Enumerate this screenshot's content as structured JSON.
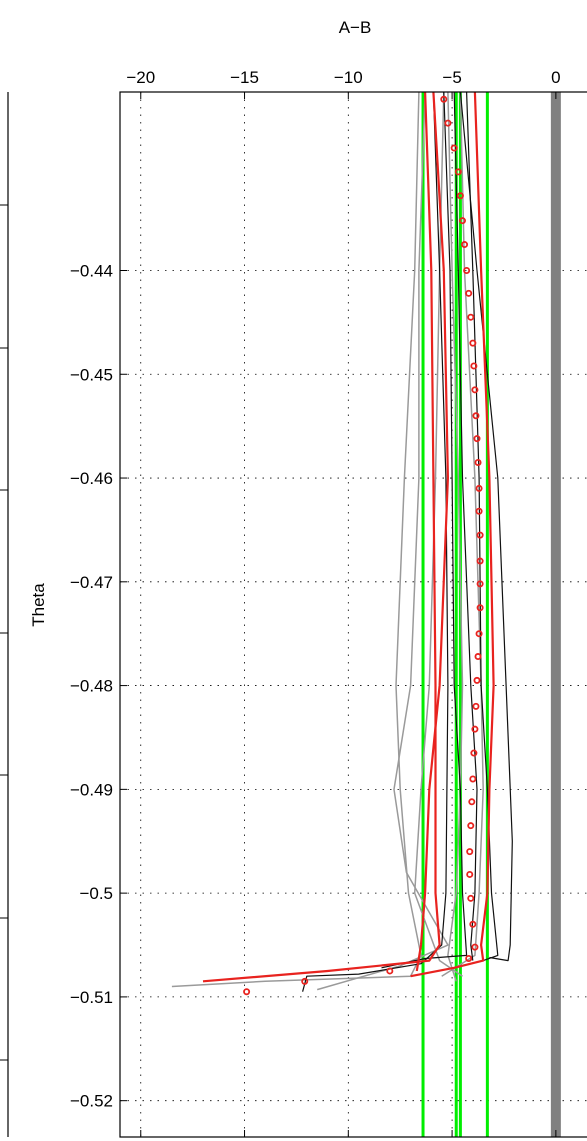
{
  "chart_data": {
    "type": "line",
    "title": "",
    "xlabel": "A−B",
    "ylabel": "Theta",
    "xlim": [
      -21,
      1.5
    ],
    "ylim": [
      -0.5235,
      -0.4228
    ],
    "x_axis_position": "top",
    "grid": true,
    "x_ticks": [
      -20,
      -15,
      -10,
      -5,
      0
    ],
    "x_tick_labels": [
      "−20",
      "−15",
      "−10",
      "−5",
      "0"
    ],
    "y_ticks": [
      -0.44,
      -0.45,
      -0.46,
      -0.47,
      -0.48,
      -0.49,
      -0.5,
      -0.51,
      -0.52
    ],
    "y_tick_labels": [
      "−0.44",
      "−0.45",
      "−0.46",
      "−0.47",
      "−0.48",
      "−0.49",
      "−0.5",
      "−0.51",
      "−0.52"
    ],
    "vertical_lines": [
      {
        "x": 0,
        "color": "#808080",
        "width": 10
      },
      {
        "x": -6.4,
        "color": "#00ee00",
        "width": 3
      },
      {
        "x": -4.8,
        "color": "#00ee00",
        "width": 3
      },
      {
        "x": -4.6,
        "color": "#00ee00",
        "width": 3
      },
      {
        "x": -3.3,
        "color": "#00ee00",
        "width": 3
      }
    ],
    "series": [
      {
        "color": "#9a9a9a",
        "width": 1.5,
        "points": [
          [
            -6.6,
            -0.4228
          ],
          [
            -6.8,
            -0.44
          ],
          [
            -7.3,
            -0.46
          ],
          [
            -7.7,
            -0.48
          ],
          [
            -7.5,
            -0.49
          ],
          [
            -7.1,
            -0.5
          ],
          [
            -6.5,
            -0.506
          ],
          [
            -7,
            -0.508
          ],
          [
            -14,
            -0.5085
          ],
          [
            -18.5,
            -0.509
          ]
        ]
      },
      {
        "color": "#9a9a9a",
        "width": 1.5,
        "points": [
          [
            -6.3,
            -0.4228
          ],
          [
            -6.6,
            -0.44
          ],
          [
            -6.6,
            -0.46
          ],
          [
            -7,
            -0.48
          ],
          [
            -7.8,
            -0.49
          ],
          [
            -7.2,
            -0.498
          ],
          [
            -5.2,
            -0.505
          ],
          [
            -7.5,
            -0.507
          ],
          [
            -11.5,
            -0.5093
          ]
        ]
      },
      {
        "color": "#9a9a9a",
        "width": 1.5,
        "points": [
          [
            -5.4,
            -0.4228
          ],
          [
            -5.6,
            -0.44
          ],
          [
            -5.8,
            -0.46
          ],
          [
            -6.1,
            -0.48
          ],
          [
            -6.5,
            -0.49
          ],
          [
            -6.8,
            -0.5
          ],
          [
            -5.6,
            -0.5065
          ],
          [
            -4.5,
            -0.508
          ]
        ]
      },
      {
        "color": "#9a9a9a",
        "width": 1.5,
        "points": [
          [
            -5.2,
            -0.4228
          ],
          [
            -5,
            -0.44
          ],
          [
            -4.7,
            -0.46
          ],
          [
            -4.5,
            -0.48
          ],
          [
            -4.6,
            -0.49
          ],
          [
            -4.8,
            -0.5
          ],
          [
            -5.2,
            -0.506
          ],
          [
            -4.8,
            -0.5085
          ]
        ]
      },
      {
        "color": "#9a9a9a",
        "width": 1.5,
        "points": [
          [
            -4.6,
            -0.4228
          ],
          [
            -4.4,
            -0.44
          ],
          [
            -3.9,
            -0.46
          ],
          [
            -3.6,
            -0.48
          ],
          [
            -3.5,
            -0.49
          ],
          [
            -3.7,
            -0.5
          ],
          [
            -3.9,
            -0.506
          ],
          [
            -5.5,
            -0.508
          ]
        ]
      },
      {
        "color": "#111111",
        "width": 1.2,
        "points": [
          [
            -5.9,
            -0.4228
          ],
          [
            -5.6,
            -0.44
          ],
          [
            -5.3,
            -0.46
          ],
          [
            -5.2,
            -0.48
          ],
          [
            -5.3,
            -0.5
          ],
          [
            -5.5,
            -0.505
          ],
          [
            -6.5,
            -0.5068
          ],
          [
            -9.5,
            -0.5078
          ],
          [
            -12,
            -0.508
          ],
          [
            -12.2,
            -0.5095
          ]
        ]
      },
      {
        "color": "#111111",
        "width": 1.2,
        "points": [
          [
            -5.4,
            -0.4228
          ],
          [
            -5.1,
            -0.44
          ],
          [
            -5,
            -0.46
          ],
          [
            -4.9,
            -0.48
          ],
          [
            -4.6,
            -0.49
          ],
          [
            -4.5,
            -0.5
          ],
          [
            -4.3,
            -0.506
          ],
          [
            -6.3,
            -0.5063
          ],
          [
            -8.4,
            -0.5072
          ]
        ]
      },
      {
        "color": "#111111",
        "width": 1.2,
        "points": [
          [
            -4.9,
            -0.4228
          ],
          [
            -4.7,
            -0.44
          ],
          [
            -4.5,
            -0.46
          ],
          [
            -4.1,
            -0.48
          ],
          [
            -3.8,
            -0.49
          ],
          [
            -3.9,
            -0.5
          ],
          [
            -4.1,
            -0.505
          ],
          [
            -4,
            -0.5065
          ]
        ]
      },
      {
        "color": "#111111",
        "width": 1.2,
        "points": [
          [
            -4.3,
            -0.4228
          ],
          [
            -4,
            -0.44
          ],
          [
            -3.7,
            -0.46
          ],
          [
            -3.6,
            -0.48
          ],
          [
            -3.3,
            -0.49
          ],
          [
            -3.1,
            -0.5
          ],
          [
            -2.8,
            -0.506
          ],
          [
            -3.5,
            -0.5065
          ]
        ]
      },
      {
        "color": "#111111",
        "width": 1.2,
        "points": [
          [
            -4.6,
            -0.4228
          ],
          [
            -3.8,
            -0.44
          ],
          [
            -2.8,
            -0.46
          ],
          [
            -2.4,
            -0.48
          ],
          [
            -2.1,
            -0.495
          ],
          [
            -2.2,
            -0.505
          ],
          [
            -2.3,
            -0.5065
          ],
          [
            -3.2,
            -0.5062
          ]
        ]
      },
      {
        "color": "#e8231f",
        "width": 2.2,
        "points": [
          [
            -6.3,
            -0.4228
          ],
          [
            -6,
            -0.44
          ],
          [
            -5.9,
            -0.46
          ],
          [
            -5.8,
            -0.48
          ],
          [
            -5.8,
            -0.5
          ],
          [
            -5.6,
            -0.505
          ],
          [
            -6.1,
            -0.5065
          ],
          [
            -11,
            -0.5075
          ],
          [
            -17,
            -0.5085
          ]
        ]
      },
      {
        "color": "#e8231f",
        "width": 2.2,
        "points": [
          [
            -5.9,
            -0.4228
          ],
          [
            -5.4,
            -0.44
          ],
          [
            -5.2,
            -0.46
          ],
          [
            -5.6,
            -0.48
          ],
          [
            -6.1,
            -0.49
          ],
          [
            -6.3,
            -0.5
          ],
          [
            -6.5,
            -0.505
          ],
          [
            -6.7,
            -0.5075
          ]
        ]
      },
      {
        "color": "#e8231f",
        "width": 2.2,
        "points": [
          [
            -3.9,
            -0.4228
          ],
          [
            -3.6,
            -0.44
          ],
          [
            -3.2,
            -0.46
          ],
          [
            -3,
            -0.48
          ],
          [
            -3.2,
            -0.49
          ],
          [
            -3.3,
            -0.5
          ],
          [
            -3.6,
            -0.505
          ],
          [
            -3.5,
            -0.5065
          ],
          [
            -4.9,
            -0.5072
          ],
          [
            -7,
            -0.508
          ]
        ]
      }
    ],
    "markers": {
      "color": "#e8231f",
      "shape": "open-circle",
      "points": [
        [
          -5.4,
          -0.4235
        ],
        [
          -5.2,
          -0.4258
        ],
        [
          -4.9,
          -0.4282
        ],
        [
          -4.7,
          -0.4305
        ],
        [
          -4.6,
          -0.4328
        ],
        [
          -4.5,
          -0.4352
        ],
        [
          -4.4,
          -0.4375
        ],
        [
          -4.3,
          -0.44
        ],
        [
          -4.2,
          -0.4422
        ],
        [
          -4.1,
          -0.4445
        ],
        [
          -4,
          -0.447
        ],
        [
          -3.95,
          -0.4492
        ],
        [
          -3.9,
          -0.4515
        ],
        [
          -3.85,
          -0.454
        ],
        [
          -3.8,
          -0.4562
        ],
        [
          -3.75,
          -0.4585
        ],
        [
          -3.7,
          -0.461
        ],
        [
          -3.7,
          -0.4632
        ],
        [
          -3.65,
          -0.4655
        ],
        [
          -3.65,
          -0.468
        ],
        [
          -3.65,
          -0.4702
        ],
        [
          -3.65,
          -0.4725
        ],
        [
          -3.7,
          -0.475
        ],
        [
          -3.75,
          -0.4772
        ],
        [
          -3.8,
          -0.4795
        ],
        [
          -3.85,
          -0.482
        ],
        [
          -3.9,
          -0.4842
        ],
        [
          -3.95,
          -0.4865
        ],
        [
          -4,
          -0.489
        ],
        [
          -4.05,
          -0.4912
        ],
        [
          -4.1,
          -0.4935
        ],
        [
          -4.15,
          -0.496
        ],
        [
          -4.15,
          -0.4982
        ],
        [
          -4.1,
          -0.5005
        ],
        [
          -4,
          -0.503
        ],
        [
          -3.9,
          -0.5052
        ],
        [
          -4.2,
          -0.5063
        ],
        [
          -8,
          -0.5075
        ],
        [
          -12.1,
          -0.5085
        ],
        [
          -14.9,
          -0.5095
        ]
      ]
    }
  }
}
